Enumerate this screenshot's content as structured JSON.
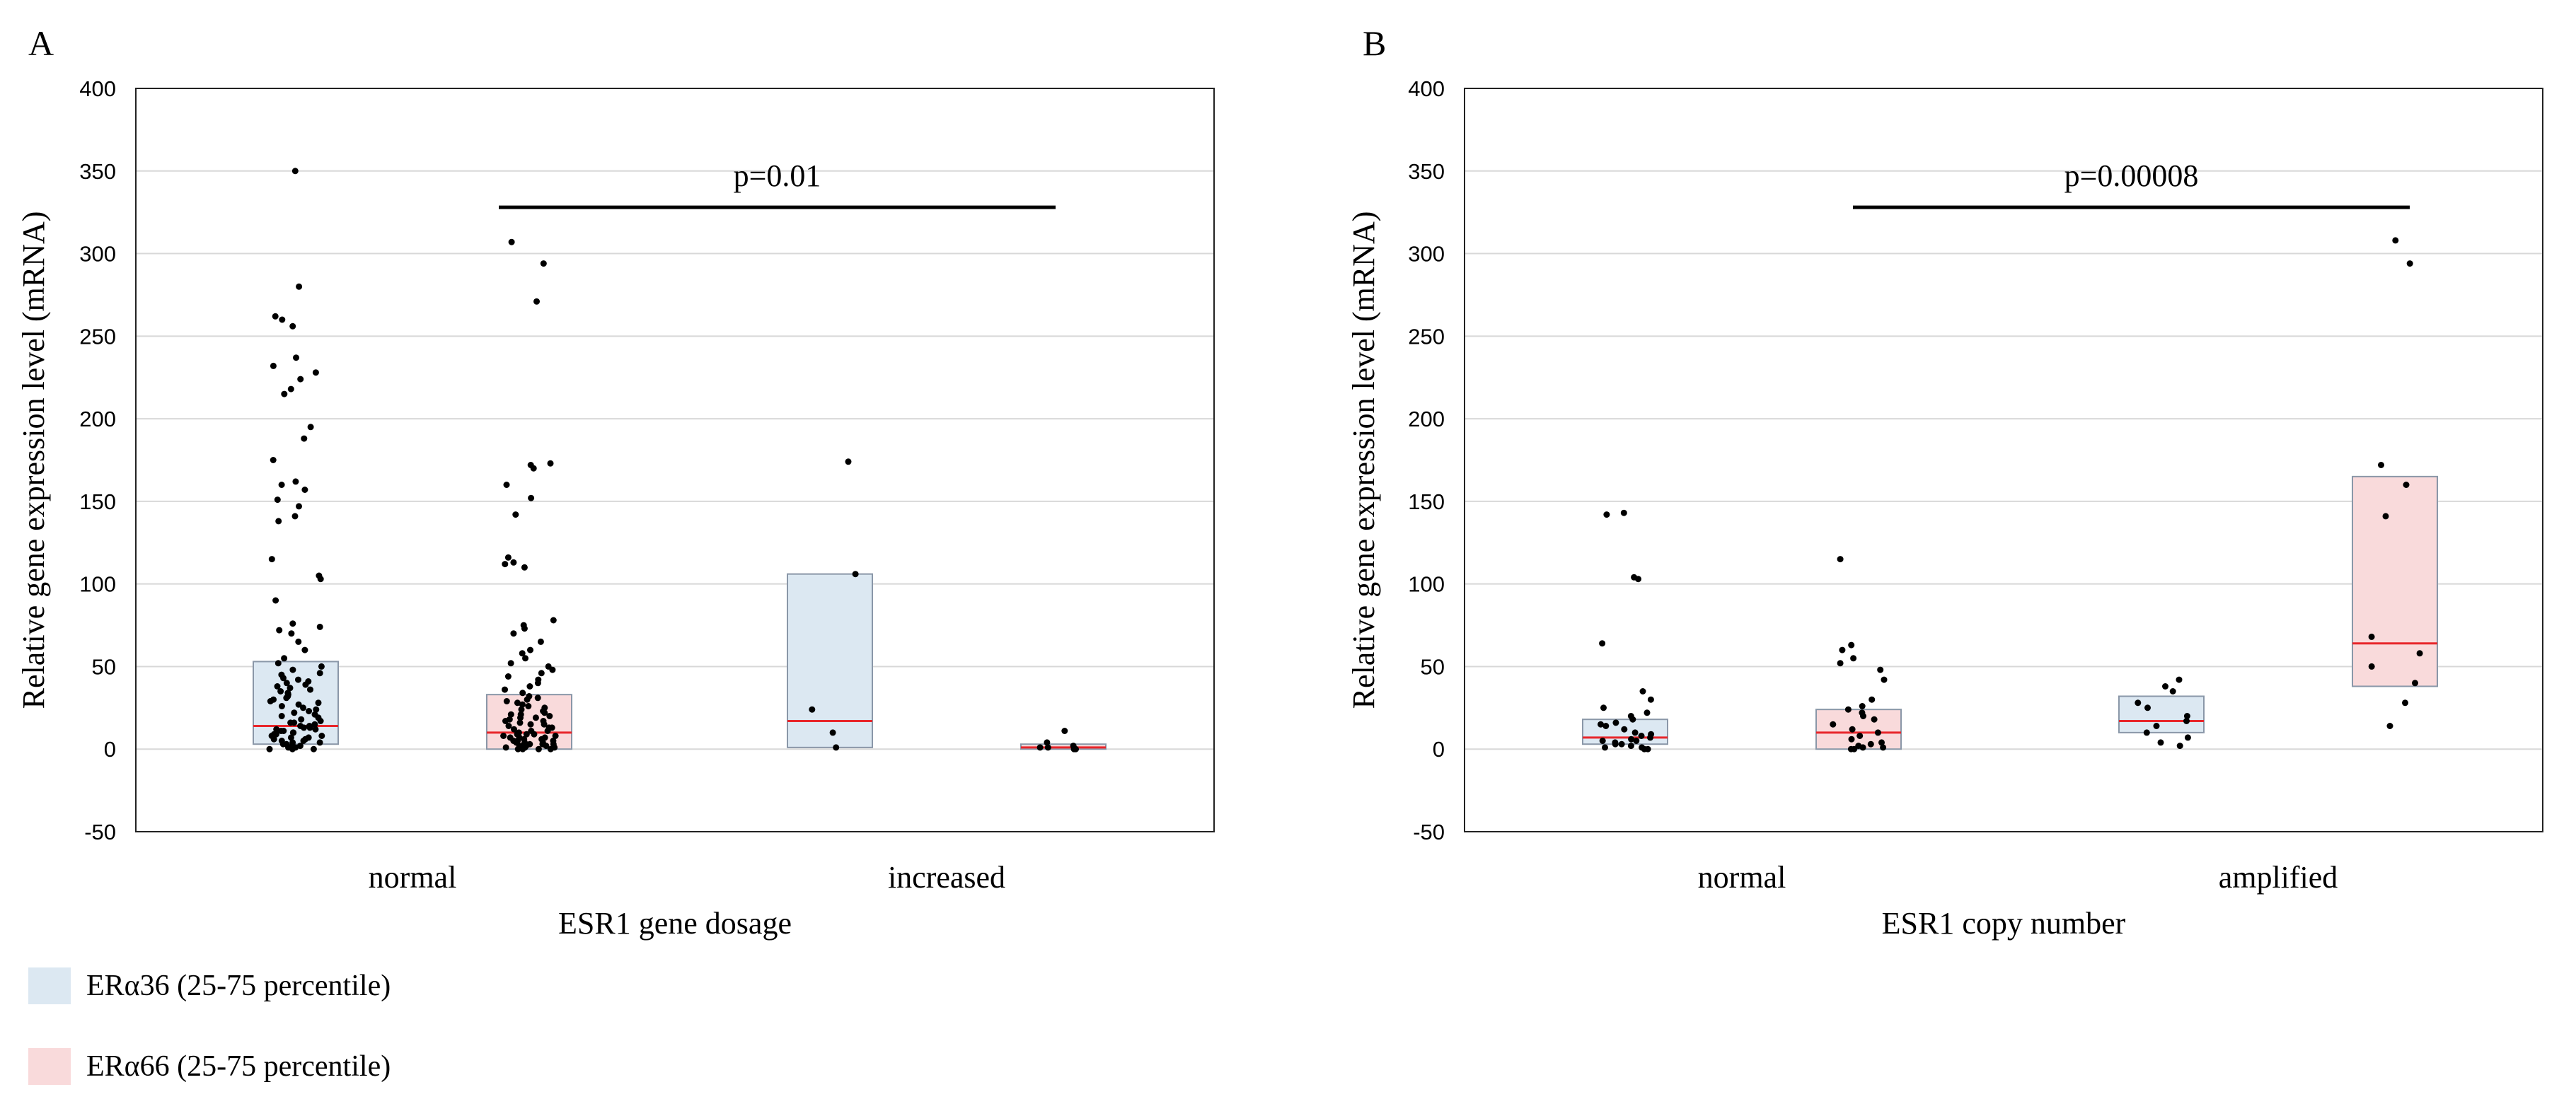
{
  "colors": {
    "era36_fill": "#dce8f2",
    "era66_fill": "#f9dadb",
    "median": "#e8262b",
    "box_edge": "#8a97a8",
    "grid": "#d8d8d8",
    "point": "#000000"
  },
  "legend": [
    {
      "label": "ERα36 (25-75 percentile)",
      "color": "#dce8f2"
    },
    {
      "label": "ERα66 (25-75 percentile)",
      "color": "#f9dadb"
    }
  ],
  "chart_data": [
    {
      "panel": "A",
      "type": "box",
      "xlabel": "ESR1 gene dosage",
      "ylabel": "Relative gene expression level (mRNA)",
      "ylim": [
        -50,
        400
      ],
      "yticks": [
        -50,
        0,
        50,
        100,
        150,
        200,
        250,
        300,
        350,
        400
      ],
      "categories": [
        "normal",
        "increased"
      ],
      "annotation": {
        "text": "p=0.01",
        "y": 328
      },
      "groups": [
        {
          "category": "normal",
          "series": "ERα36",
          "q1": 3,
          "median": 14,
          "q3": 53,
          "points": [
            350,
            280,
            262,
            260,
            256,
            237,
            232,
            228,
            224,
            218,
            215,
            195,
            188,
            175,
            162,
            160,
            157,
            151,
            147,
            141,
            138,
            115,
            105,
            103,
            90,
            76,
            74,
            72,
            70,
            65,
            60,
            55,
            52,
            50,
            48,
            45,
            42,
            40,
            38,
            36,
            34,
            32,
            30,
            28,
            26,
            24,
            22,
            20,
            18,
            16,
            14,
            13,
            12,
            11,
            10,
            9,
            8,
            7,
            6,
            5,
            4,
            3,
            2,
            1,
            0,
            0,
            1,
            2,
            3,
            5,
            7,
            9,
            11,
            13,
            15,
            17,
            19,
            21,
            23,
            25,
            27,
            29,
            31,
            33,
            35,
            37,
            39,
            41,
            43,
            46,
            0,
            1,
            2,
            4,
            6,
            8,
            10,
            12,
            14,
            16
          ]
        },
        {
          "category": "normal",
          "series": "ERα66",
          "q1": 0,
          "median": 10,
          "q3": 33,
          "points": [
            307,
            294,
            271,
            173,
            172,
            170,
            160,
            152,
            142,
            116,
            113,
            112,
            110,
            78,
            75,
            73,
            70,
            65,
            60,
            58,
            55,
            52,
            50,
            48,
            46,
            44,
            42,
            40,
            38,
            36,
            34,
            32,
            30,
            28,
            26,
            24,
            22,
            20,
            18,
            16,
            14,
            12,
            10,
            9,
            8,
            7,
            6,
            5,
            4,
            3,
            2,
            1,
            0,
            0,
            1,
            2,
            3,
            4,
            5,
            6,
            7,
            8,
            9,
            11,
            13,
            15,
            17,
            19,
            21,
            23,
            25,
            27,
            29,
            31,
            0,
            1,
            2,
            3,
            5,
            7,
            9,
            11,
            13,
            15,
            17,
            19,
            21,
            0,
            2,
            4
          ]
        },
        {
          "category": "increased",
          "series": "ERα36",
          "q1": 1,
          "median": 17,
          "q3": 106,
          "points": [
            174,
            106,
            24,
            10,
            1
          ]
        },
        {
          "category": "increased",
          "series": "ERα66",
          "q1": 0,
          "median": 1,
          "q3": 3,
          "points": [
            11,
            4,
            2,
            1,
            0,
            0,
            1
          ]
        }
      ]
    },
    {
      "panel": "B",
      "type": "box",
      "xlabel": "ESR1 copy number",
      "ylabel": "Relative gene expression level (mRNA)",
      "ylim": [
        -50,
        400
      ],
      "yticks": [
        -50,
        0,
        50,
        100,
        150,
        200,
        250,
        300,
        350,
        400
      ],
      "categories": [
        "normal",
        "amplified"
      ],
      "annotation": {
        "text": "p=0.00008",
        "y": 328
      },
      "groups": [
        {
          "category": "normal",
          "series": "ERα36",
          "q1": 3,
          "median": 7,
          "q3": 18,
          "points": [
            143,
            142,
            104,
            103,
            64,
            35,
            30,
            25,
            22,
            20,
            18,
            16,
            15,
            14,
            12,
            10,
            9,
            8,
            7,
            6,
            5,
            4,
            3,
            2,
            1,
            0,
            0,
            1,
            3,
            5
          ]
        },
        {
          "category": "normal",
          "series": "ERα66",
          "q1": 0,
          "median": 10,
          "q3": 24,
          "points": [
            115,
            63,
            60,
            55,
            52,
            48,
            42,
            30,
            26,
            24,
            22,
            20,
            18,
            15,
            12,
            10,
            8,
            6,
            4,
            2,
            1,
            0,
            0,
            1,
            3
          ]
        },
        {
          "category": "amplified",
          "series": "ERα36",
          "q1": 10,
          "median": 17,
          "q3": 32,
          "points": [
            42,
            38,
            35,
            28,
            25,
            20,
            17,
            14,
            10,
            7,
            4,
            2
          ]
        },
        {
          "category": "amplified",
          "series": "ERα66",
          "q1": 38,
          "median": 64,
          "q3": 165,
          "points": [
            308,
            294,
            172,
            160,
            141,
            68,
            58,
            50,
            40,
            28,
            14
          ]
        }
      ]
    }
  ]
}
